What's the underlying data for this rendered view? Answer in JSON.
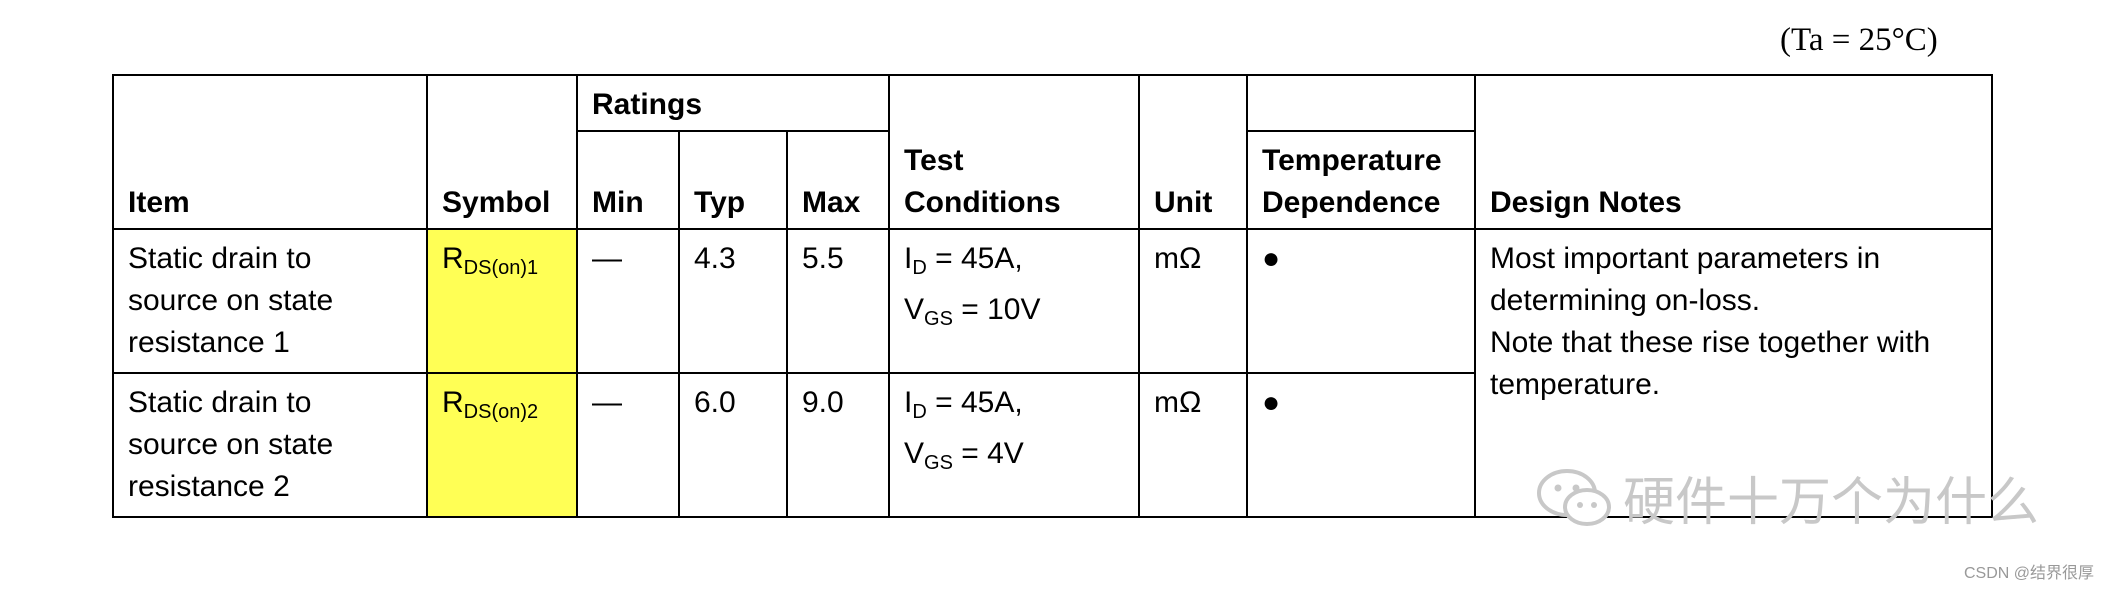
{
  "condition": "(Ta = 25°C)",
  "headers": {
    "item": "Item",
    "symbol": "Symbol",
    "ratings": "Ratings",
    "min": "Min",
    "typ": "Typ",
    "max": "Max",
    "test_conditions_line1": "Test",
    "test_conditions_line2": "Conditions",
    "unit": "Unit",
    "temp_dep_line1": "Temperature",
    "temp_dep_line2": "Dependence",
    "design_notes": "Design Notes"
  },
  "rows": [
    {
      "item": [
        "Static drain to",
        "source on state",
        "resistance 1"
      ],
      "symbol_main": "R",
      "symbol_sub": "DS(on)1",
      "min": "—",
      "typ": "4.3",
      "max": "5.5",
      "cond1_main": "I",
      "cond1_sub": "D",
      "cond1_val": " = 45A,",
      "cond2_main": "V",
      "cond2_sub": "GS",
      "cond2_val": " = 10V",
      "unit": "mΩ",
      "temp": "●"
    },
    {
      "item": [
        "Static drain to",
        "source on state",
        "resistance 2"
      ],
      "symbol_main": "R",
      "symbol_sub": "DS(on)2",
      "min": "—",
      "typ": "6.0",
      "max": "9.0",
      "cond1_main": "I",
      "cond1_sub": "D",
      "cond1_val": " = 45A,",
      "cond2_main": "V",
      "cond2_sub": "GS",
      "cond2_val": " = 4V",
      "unit": "mΩ",
      "temp": "●"
    }
  ],
  "design_notes": [
    "Most important parameters in",
    "determining on-loss.",
    "Note that these rise together with",
    "temperature."
  ],
  "watermark": {
    "icon": "wechat-icon",
    "text": "硬件十万个为什么"
  },
  "csdn_credit": "CSDN @结界很厚"
}
